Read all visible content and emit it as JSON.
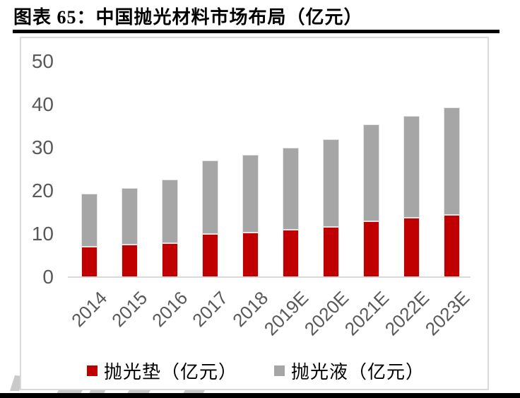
{
  "header": {
    "title": "图表 65：中国抛光材料市场布局（亿元）"
  },
  "chart_data": {
    "type": "bar",
    "stacked": true,
    "title": "中国抛光材料市场布局（亿元）",
    "categories": [
      "2014",
      "2015",
      "2016",
      "2017",
      "2018",
      "2019E",
      "2020E",
      "2021E",
      "2022E",
      "2023E"
    ],
    "series": [
      {
        "name": "抛光垫（亿元）",
        "color": "#c00000",
        "values": [
          7.0,
          7.5,
          7.8,
          10.0,
          10.3,
          11.0,
          11.7,
          12.9,
          13.7,
          14.4
        ]
      },
      {
        "name": "抛光液（亿元）",
        "color": "#a6a6a6",
        "values": [
          12.4,
          13.1,
          14.9,
          17.1,
          18.0,
          19.0,
          20.2,
          22.5,
          23.7,
          24.9
        ]
      }
    ],
    "totals": [
      19.4,
      20.6,
      22.7,
      27.1,
      28.3,
      30.0,
      31.9,
      35.4,
      37.4,
      39.3
    ],
    "ylim": [
      0,
      50
    ],
    "yticks": [
      0,
      10,
      20,
      30,
      40,
      50
    ],
    "xlabel": "",
    "ylabel": "",
    "grid": false,
    "legend_position": "bottom"
  },
  "colors": {
    "axis_text": "#595959",
    "axis_line": "#d9d9d9",
    "panel_border": "#d9d9d9",
    "title_text": "#000000",
    "rule": "#000000",
    "watermark": "#c9c9c9"
  }
}
